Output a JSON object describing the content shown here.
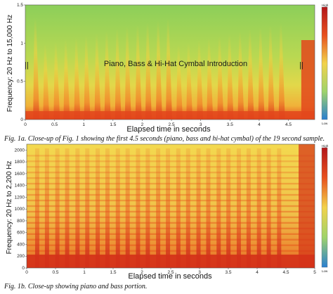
{
  "chart_data": [
    {
      "type": "heatmap",
      "title": "",
      "annotation": "Piano, Bass & Hi-Hat Cymbal Introduction",
      "xlabel": "Elapsed time in seconds",
      "ylabel": "Frequency: 20 Hz to 15,000 Hz",
      "xlim": [
        0,
        4.95
      ],
      "ylim": [
        0,
        1.5
      ],
      "x_ticks": [
        "0",
        "0.5",
        "1",
        "1.5",
        "2",
        "2.5",
        "3",
        "3.5",
        "4",
        "4.5"
      ],
      "y_ticks": [
        "0",
        "0.5",
        "1",
        "1.5"
      ],
      "colorbar": {
        "high_label": "High",
        "low_label": "Low"
      },
      "onset_times": [
        0.17,
        0.34,
        0.52,
        0.69,
        0.87,
        1.04,
        1.22,
        1.39,
        1.57,
        1.74,
        1.92,
        2.09,
        2.27,
        2.44,
        2.62,
        2.79,
        2.97,
        3.14,
        3.32,
        3.49,
        3.67,
        3.84,
        4.02,
        4.19,
        4.37
      ]
    },
    {
      "type": "heatmap",
      "title": "",
      "xlabel": "Elapsed time in seconds",
      "ylabel": "Frequency: 20 Hz to 2,200 Hz",
      "xlim": [
        0,
        5
      ],
      "ylim": [
        0,
        2100
      ],
      "x_ticks": [
        "0",
        "0.5",
        "1",
        "1.5",
        "2",
        "2.5",
        "3",
        "3.5",
        "4",
        "4.5",
        "5"
      ],
      "y_ticks": [
        "0",
        "200",
        "400",
        "600",
        "800",
        "1000",
        "1200",
        "1400",
        "1600",
        "1800",
        "2000"
      ],
      "colorbar": {
        "high_label": "High",
        "low_label": "Low"
      },
      "onset_times": [
        0.17,
        0.34,
        0.52,
        0.69,
        0.87,
        1.04,
        1.22,
        1.39,
        1.57,
        1.74,
        1.92,
        2.09,
        2.27,
        2.44,
        2.62,
        2.79,
        2.97,
        3.14,
        3.32,
        3.49,
        3.67,
        3.84,
        4.02,
        4.19,
        4.37
      ]
    }
  ],
  "captions": {
    "fig1a": "Fig. 1a. Close-up of Fig. 1 showing the first 4.5 seconds (piano, bass and hi-hat cymbal) of the 19 second sample.",
    "fig1b": "Fig. 1b. Close-up showing piano and bass portion."
  },
  "colors": {
    "spec_low": "#2fa84f",
    "spec_mid": "#d8d64a",
    "spec_high": "#e8501e",
    "spec_peak": "#b3161a"
  }
}
